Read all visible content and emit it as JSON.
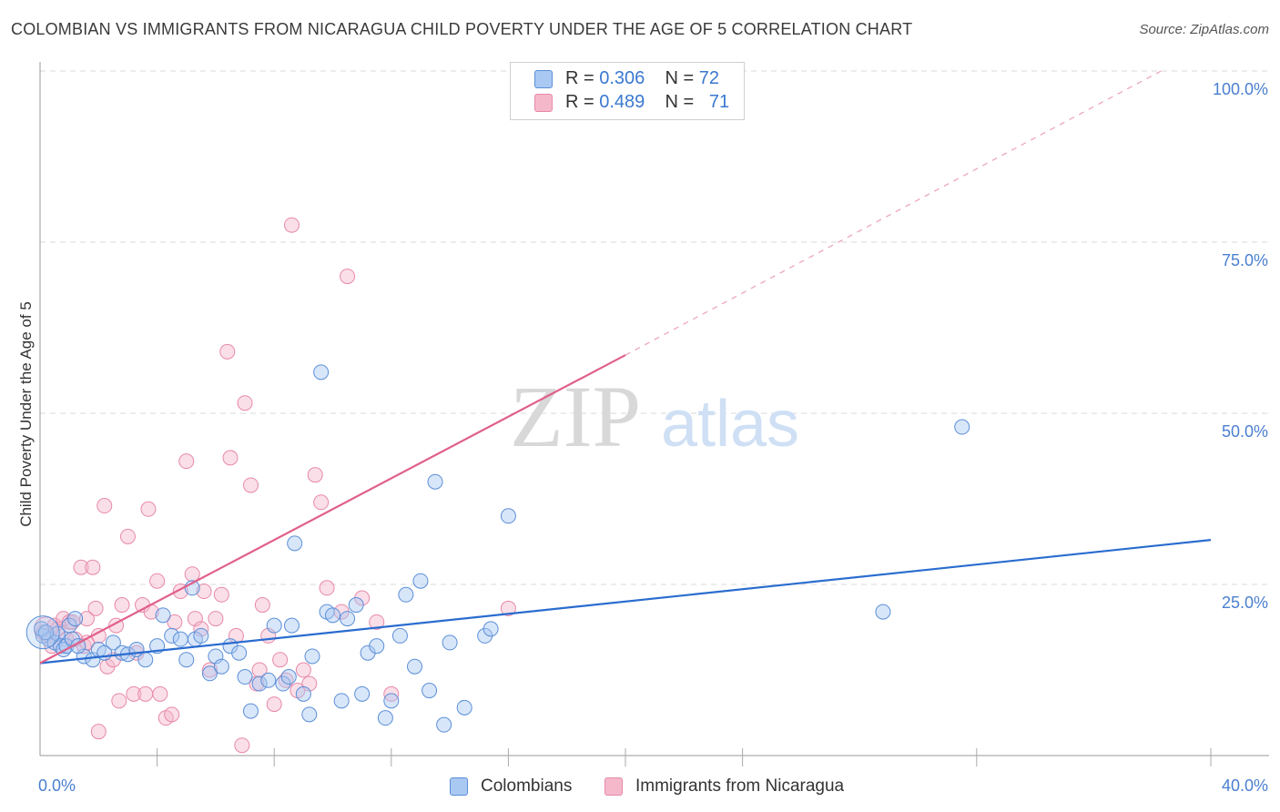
{
  "title": "COLOMBIAN VS IMMIGRANTS FROM NICARAGUA CHILD POVERTY UNDER THE AGE OF 5 CORRELATION CHART",
  "source": "Source: ZipAtlas.com",
  "watermark": {
    "zip": "ZIP",
    "atlas": "atlas"
  },
  "colors": {
    "blue_fill": "#a9c8f2",
    "blue_stroke": "#5b8fd8",
    "blue_line": "#2a6ccf",
    "pink_fill": "#f5b8cb",
    "pink_stroke": "#e889a8",
    "pink_line": "#e0608a",
    "axis_label": "#4a7fd0",
    "grid": "#d9d9d9"
  },
  "legend_top": {
    "rows": [
      {
        "r_label": "R = ",
        "r_value": "0.306",
        "n_label": "N = ",
        "n_value": "72"
      },
      {
        "r_label": "R = ",
        "r_value": "0.489",
        "n_label": "N = ",
        "n_value": "71"
      }
    ]
  },
  "legend_bottom": {
    "items": [
      "Colombians",
      "Immigrants from Nicaragua"
    ]
  },
  "chart_data": {
    "type": "scatter",
    "title": "COLOMBIAN VS IMMIGRANTS FROM NICARAGUA CHILD POVERTY UNDER THE AGE OF 5 CORRELATION CHART",
    "xlabel": "",
    "ylabel": "Child Poverty Under the Age of 5",
    "xlim": [
      0,
      40
    ],
    "ylim": [
      0,
      100
    ],
    "x_tick_labels": [
      {
        "x": 0,
        "label": "0.0%"
      },
      {
        "x": 40,
        "label": "40.0%"
      }
    ],
    "x_minor_ticks": [
      4,
      8,
      12,
      16,
      20,
      24,
      32,
      40
    ],
    "y_ticks": [
      {
        "y": 25,
        "label": "25.0%"
      },
      {
        "y": 50,
        "label": "50.0%"
      },
      {
        "y": 75,
        "label": "75.0%"
      },
      {
        "y": 100,
        "label": "100.0%"
      }
    ],
    "series": [
      {
        "name": "Colombians",
        "r": 0.306,
        "n": 72,
        "trend": {
          "x0": 0,
          "y0": 13.5,
          "x1": 40,
          "y1": 31.5,
          "dashed_from": null
        },
        "points": [
          [
            0.1,
            17.5
          ],
          [
            0.3,
            17
          ],
          [
            0.5,
            16.5
          ],
          [
            0.6,
            17.8
          ],
          [
            0.7,
            16
          ],
          [
            0.8,
            15.5
          ],
          [
            0.9,
            16
          ],
          [
            1.0,
            19
          ],
          [
            1.1,
            17
          ],
          [
            1.2,
            20
          ],
          [
            1.5,
            14.5
          ],
          [
            1.8,
            14
          ],
          [
            2.0,
            15.5
          ],
          [
            2.2,
            15
          ],
          [
            2.5,
            16.5
          ],
          [
            2.8,
            15
          ],
          [
            3.0,
            14.8
          ],
          [
            3.3,
            15.5
          ],
          [
            3.6,
            14
          ],
          [
            4.0,
            16
          ],
          [
            4.2,
            20.5
          ],
          [
            4.5,
            17.5
          ],
          [
            4.8,
            17
          ],
          [
            5.0,
            14
          ],
          [
            5.2,
            24.5
          ],
          [
            5.3,
            17
          ],
          [
            5.5,
            17.5
          ],
          [
            5.8,
            12
          ],
          [
            6.0,
            14.5
          ],
          [
            6.2,
            13
          ],
          [
            6.5,
            16
          ],
          [
            6.8,
            15
          ],
          [
            7.0,
            11.5
          ],
          [
            7.2,
            6.5
          ],
          [
            7.5,
            10.5
          ],
          [
            7.8,
            11
          ],
          [
            8.0,
            19
          ],
          [
            8.3,
            10.5
          ],
          [
            8.5,
            11.5
          ],
          [
            8.6,
            19
          ],
          [
            8.7,
            31
          ],
          [
            9.0,
            9
          ],
          [
            9.2,
            6
          ],
          [
            9.3,
            14.5
          ],
          [
            9.6,
            56
          ],
          [
            9.8,
            21
          ],
          [
            10.0,
            20.5
          ],
          [
            10.3,
            8
          ],
          [
            10.5,
            20
          ],
          [
            10.8,
            22
          ],
          [
            11.0,
            9
          ],
          [
            11.2,
            15
          ],
          [
            11.5,
            16
          ],
          [
            11.8,
            5.5
          ],
          [
            12.0,
            8
          ],
          [
            12.3,
            17.5
          ],
          [
            12.5,
            23.5
          ],
          [
            12.8,
            13
          ],
          [
            13.0,
            25.5
          ],
          [
            13.3,
            9.5
          ],
          [
            13.5,
            40
          ],
          [
            13.8,
            4.5
          ],
          [
            14.0,
            16.5
          ],
          [
            14.5,
            7
          ],
          [
            15.2,
            17.5
          ],
          [
            15.4,
            18.5
          ],
          [
            16.0,
            35
          ],
          [
            28.8,
            21
          ],
          [
            31.5,
            48
          ],
          [
            0.05,
            18.5
          ],
          [
            0.2,
            18
          ],
          [
            1.3,
            16
          ]
        ]
      },
      {
        "name": "Immigrants from Nicaragua",
        "r": 0.489,
        "n": 71,
        "trend": {
          "x0": 0,
          "y0": 13.5,
          "x1": 20,
          "y1": 58.5,
          "dashed_to_x": 38.3,
          "dashed_to_y": 100
        },
        "points": [
          [
            0.1,
            18
          ],
          [
            0.3,
            17.5
          ],
          [
            0.5,
            19
          ],
          [
            0.6,
            18.5
          ],
          [
            0.8,
            20
          ],
          [
            0.9,
            17
          ],
          [
            1.0,
            19.5
          ],
          [
            1.1,
            19.5
          ],
          [
            1.2,
            17
          ],
          [
            1.4,
            27.5
          ],
          [
            1.5,
            16
          ],
          [
            1.6,
            20
          ],
          [
            1.8,
            27.5
          ],
          [
            1.9,
            21.5
          ],
          [
            2.0,
            17.5
          ],
          [
            2.2,
            36.5
          ],
          [
            2.3,
            13
          ],
          [
            2.5,
            14
          ],
          [
            2.6,
            19
          ],
          [
            2.7,
            8
          ],
          [
            2.8,
            22
          ],
          [
            3.0,
            32
          ],
          [
            3.2,
            9
          ],
          [
            3.3,
            15
          ],
          [
            3.5,
            22
          ],
          [
            3.6,
            9
          ],
          [
            3.7,
            36
          ],
          [
            3.8,
            21
          ],
          [
            4.0,
            25.5
          ],
          [
            4.1,
            9
          ],
          [
            4.3,
            5.5
          ],
          [
            4.5,
            6
          ],
          [
            4.6,
            19.5
          ],
          [
            4.8,
            24
          ],
          [
            5.0,
            43
          ],
          [
            5.2,
            26.5
          ],
          [
            5.3,
            20
          ],
          [
            5.5,
            18.5
          ],
          [
            5.6,
            24
          ],
          [
            5.8,
            12.5
          ],
          [
            6.0,
            20
          ],
          [
            6.2,
            23.5
          ],
          [
            6.4,
            59
          ],
          [
            6.5,
            43.5
          ],
          [
            6.7,
            17.5
          ],
          [
            6.9,
            1.5
          ],
          [
            7.0,
            51.5
          ],
          [
            7.2,
            39.5
          ],
          [
            7.4,
            10.5
          ],
          [
            7.5,
            12.5
          ],
          [
            7.6,
            22
          ],
          [
            7.8,
            17.5
          ],
          [
            8.0,
            7.5
          ],
          [
            8.2,
            14
          ],
          [
            8.4,
            11
          ],
          [
            8.6,
            77.5
          ],
          [
            8.8,
            9.5
          ],
          [
            9.0,
            12.5
          ],
          [
            9.2,
            10.5
          ],
          [
            9.4,
            41
          ],
          [
            9.6,
            37
          ],
          [
            9.8,
            24.5
          ],
          [
            10.3,
            21
          ],
          [
            10.5,
            70
          ],
          [
            11.0,
            23
          ],
          [
            11.5,
            19.5
          ],
          [
            12.0,
            9
          ],
          [
            16.0,
            21.5
          ],
          [
            2.0,
            3.5
          ],
          [
            1.6,
            16.5
          ],
          [
            0.4,
            16
          ]
        ]
      }
    ]
  }
}
